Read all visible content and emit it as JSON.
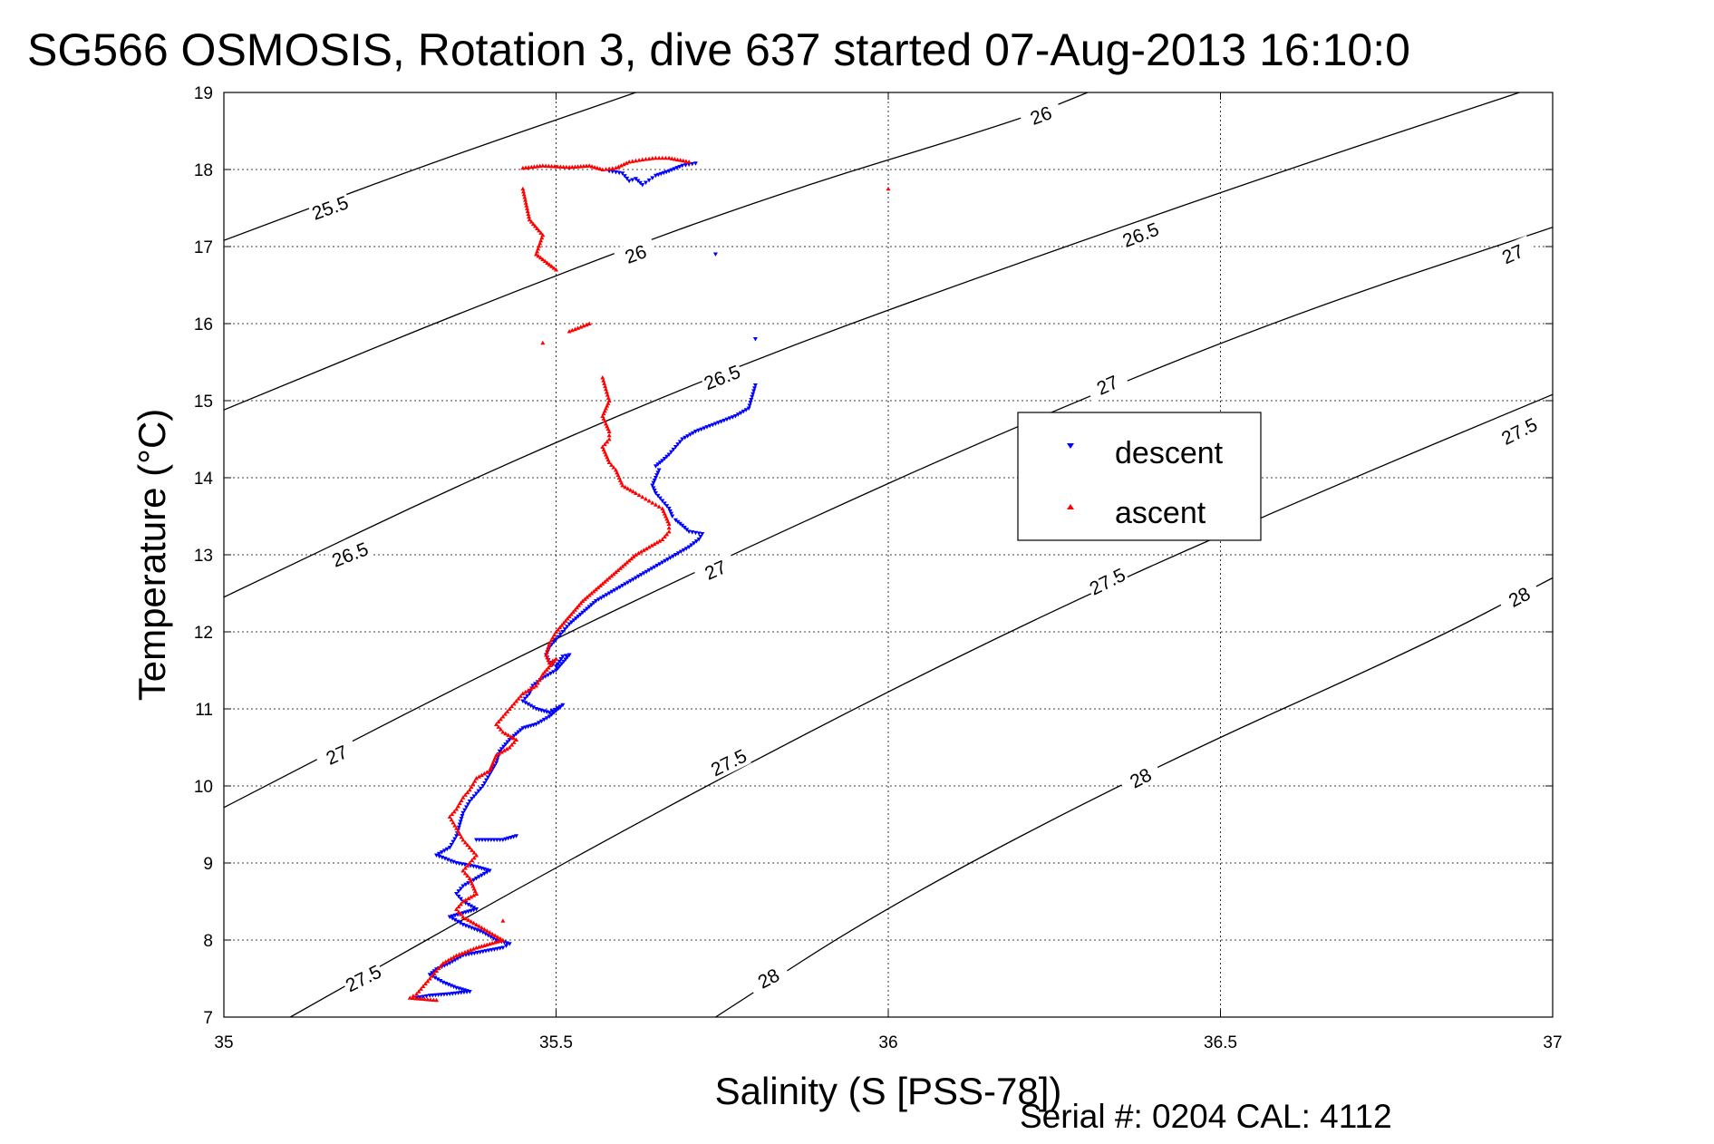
{
  "chart_data": {
    "type": "scatter",
    "title": "SG566 OSMOSIS, Rotation 3, dive 637 started 07-Aug-2013 16:10:0",
    "xlabel": "Salinity (S [PSS-78])",
    "ylabel": "Temperature (°C)",
    "xlim": [
      35,
      37
    ],
    "ylim": [
      7,
      19
    ],
    "xticks": [
      "35",
      "35.5",
      "36",
      "36.5",
      "37"
    ],
    "yticks": [
      "7",
      "8",
      "9",
      "10",
      "11",
      "12",
      "13",
      "14",
      "15",
      "16",
      "17",
      "18",
      "19"
    ],
    "grid": true,
    "legend_position": "right-center",
    "footer": "Serial #: 0204  CAL: 4112",
    "contours": [
      {
        "label": "25.5",
        "label_positions": [
          [
            35.16,
            17.5
          ]
        ],
        "points": [
          [
            35.0,
            17.08
          ],
          [
            35.3,
            18.05
          ],
          [
            35.62,
            19.0
          ]
        ]
      },
      {
        "label": "26",
        "label_positions": [
          [
            35.62,
            16.9
          ],
          [
            36.23,
            18.7
          ]
        ],
        "points": [
          [
            35.0,
            14.88
          ],
          [
            35.4,
            16.3
          ],
          [
            35.8,
            17.6
          ],
          [
            36.2,
            18.65
          ],
          [
            36.3,
            19.0
          ]
        ]
      },
      {
        "label": "26.5",
        "label_positions": [
          [
            35.19,
            13.0
          ],
          [
            35.75,
            15.3
          ],
          [
            36.38,
            17.15
          ]
        ],
        "points": [
          [
            35.0,
            12.45
          ],
          [
            35.4,
            14.1
          ],
          [
            35.8,
            15.55
          ],
          [
            36.2,
            16.8
          ],
          [
            36.6,
            18.0
          ],
          [
            36.95,
            19.0
          ]
        ]
      },
      {
        "label": "27",
        "label_positions": [
          [
            35.17,
            10.4
          ],
          [
            35.74,
            12.8
          ],
          [
            36.33,
            15.2
          ],
          [
            36.94,
            16.9
          ]
        ],
        "points": [
          [
            35.0,
            9.72
          ],
          [
            35.4,
            11.5
          ],
          [
            35.8,
            13.15
          ],
          [
            36.2,
            14.7
          ],
          [
            36.6,
            16.1
          ],
          [
            37.0,
            17.25
          ]
        ]
      },
      {
        "label": "27.5",
        "label_positions": [
          [
            35.21,
            7.5
          ],
          [
            35.76,
            10.3
          ],
          [
            36.33,
            12.65
          ],
          [
            36.95,
            14.6
          ]
        ],
        "points": [
          [
            35.1,
            7.0
          ],
          [
            35.5,
            8.95
          ],
          [
            35.9,
            10.8
          ],
          [
            36.3,
            12.5
          ],
          [
            36.7,
            14.0
          ],
          [
            37.0,
            15.08
          ]
        ]
      },
      {
        "label": "28",
        "label_positions": [
          [
            35.82,
            7.5
          ],
          [
            36.38,
            10.1
          ],
          [
            36.95,
            12.45
          ]
        ],
        "points": [
          [
            35.74,
            7.0
          ],
          [
            36.0,
            8.45
          ],
          [
            36.4,
            10.25
          ],
          [
            36.8,
            11.8
          ],
          [
            37.0,
            12.7
          ]
        ]
      }
    ],
    "series": [
      {
        "name": "descent",
        "color": "#0000ff",
        "marker": "triangle-down",
        "points": [
          [
            35.58,
            17.98
          ],
          [
            35.6,
            17.95
          ],
          [
            35.61,
            17.85
          ],
          [
            35.62,
            17.88
          ],
          [
            35.63,
            17.8
          ],
          [
            35.64,
            17.86
          ],
          [
            35.65,
            17.92
          ],
          [
            35.67,
            17.98
          ],
          [
            35.69,
            18.05
          ],
          [
            35.71,
            18.08
          ],
          [
            35.74,
            16.9
          ],
          [
            35.8,
            15.8
          ],
          [
            35.8,
            15.2
          ],
          [
            35.79,
            14.9
          ],
          [
            35.77,
            14.8
          ],
          [
            35.74,
            14.7
          ],
          [
            35.71,
            14.6
          ],
          [
            35.69,
            14.5
          ],
          [
            35.68,
            14.4
          ],
          [
            35.67,
            14.3
          ],
          [
            35.66,
            14.22
          ],
          [
            35.65,
            14.15
          ],
          [
            35.655,
            14.1
          ],
          [
            35.65,
            14.0
          ],
          [
            35.645,
            13.9
          ],
          [
            35.65,
            13.8
          ],
          [
            35.66,
            13.7
          ],
          [
            35.67,
            13.6
          ],
          [
            35.675,
            13.5
          ],
          [
            35.68,
            13.45
          ],
          [
            35.69,
            13.38
          ],
          [
            35.7,
            13.3
          ],
          [
            35.72,
            13.27
          ],
          [
            35.715,
            13.2
          ],
          [
            35.7,
            13.1
          ],
          [
            35.68,
            13.0
          ],
          [
            35.66,
            12.9
          ],
          [
            35.64,
            12.8
          ],
          [
            35.62,
            12.7
          ],
          [
            35.6,
            12.6
          ],
          [
            35.58,
            12.5
          ],
          [
            35.56,
            12.4
          ],
          [
            35.54,
            12.25
          ],
          [
            35.52,
            12.1
          ],
          [
            35.51,
            12.0
          ],
          [
            35.5,
            11.9
          ],
          [
            35.49,
            11.8
          ],
          [
            35.485,
            11.7
          ],
          [
            35.49,
            11.6
          ],
          [
            35.5,
            11.55
          ],
          [
            35.51,
            11.68
          ],
          [
            35.52,
            11.7
          ],
          [
            35.5,
            11.5
          ],
          [
            35.48,
            11.4
          ],
          [
            35.465,
            11.3
          ],
          [
            35.46,
            11.2
          ],
          [
            35.45,
            11.1
          ],
          [
            35.47,
            11.0
          ],
          [
            35.49,
            10.95
          ],
          [
            35.51,
            11.05
          ],
          [
            35.49,
            10.9
          ],
          [
            35.47,
            10.8
          ],
          [
            35.45,
            10.75
          ],
          [
            35.43,
            10.6
          ],
          [
            35.415,
            10.45
          ],
          [
            35.41,
            10.3
          ],
          [
            35.4,
            10.15
          ],
          [
            35.39,
            10.0
          ],
          [
            35.38,
            9.9
          ],
          [
            35.37,
            9.8
          ],
          [
            35.36,
            9.65
          ],
          [
            35.355,
            9.5
          ],
          [
            35.35,
            9.35
          ],
          [
            35.34,
            9.2
          ],
          [
            35.32,
            9.1
          ],
          [
            35.35,
            9.0
          ],
          [
            35.38,
            8.95
          ],
          [
            35.4,
            8.9
          ],
          [
            35.38,
            8.8
          ],
          [
            35.36,
            8.7
          ],
          [
            35.35,
            8.6
          ],
          [
            35.36,
            8.5
          ],
          [
            35.38,
            8.4
          ],
          [
            35.36,
            8.35
          ],
          [
            35.34,
            8.3
          ],
          [
            35.36,
            8.2
          ],
          [
            35.39,
            8.1
          ],
          [
            35.41,
            8.0
          ],
          [
            35.43,
            7.95
          ],
          [
            35.42,
            7.9
          ],
          [
            35.39,
            7.85
          ],
          [
            35.36,
            7.8
          ],
          [
            35.34,
            7.7
          ],
          [
            35.32,
            7.62
          ],
          [
            35.31,
            7.55
          ],
          [
            35.33,
            7.45
          ],
          [
            35.35,
            7.38
          ],
          [
            35.37,
            7.33
          ],
          [
            35.34,
            7.3
          ],
          [
            35.31,
            7.28
          ],
          [
            35.29,
            7.25
          ],
          [
            35.38,
            9.3
          ],
          [
            35.42,
            9.3
          ],
          [
            35.44,
            9.35
          ]
        ]
      },
      {
        "name": "ascent",
        "color": "#ff0000",
        "marker": "triangle-up",
        "points": [
          [
            35.45,
            18.02
          ],
          [
            35.48,
            18.05
          ],
          [
            35.52,
            18.03
          ],
          [
            35.55,
            18.05
          ],
          [
            35.57,
            18.0
          ],
          [
            35.59,
            18.02
          ],
          [
            35.61,
            18.1
          ],
          [
            35.63,
            18.13
          ],
          [
            35.65,
            18.15
          ],
          [
            35.67,
            18.15
          ],
          [
            35.7,
            18.1
          ],
          [
            36.0,
            17.75
          ],
          [
            35.45,
            17.75
          ],
          [
            35.46,
            17.35
          ],
          [
            35.48,
            17.15
          ],
          [
            35.47,
            16.9
          ],
          [
            35.5,
            16.7
          ],
          [
            35.52,
            15.9
          ],
          [
            35.55,
            16.0
          ],
          [
            35.48,
            15.75
          ],
          [
            35.57,
            15.3
          ],
          [
            35.58,
            15.0
          ],
          [
            35.57,
            14.8
          ],
          [
            35.58,
            14.6
          ],
          [
            35.58,
            14.5
          ],
          [
            35.57,
            14.4
          ],
          [
            35.575,
            14.3
          ],
          [
            35.58,
            14.2
          ],
          [
            35.59,
            14.1
          ],
          [
            35.595,
            14.0
          ],
          [
            35.6,
            13.9
          ],
          [
            35.62,
            13.8
          ],
          [
            35.63,
            13.75
          ],
          [
            35.64,
            13.7
          ],
          [
            35.65,
            13.65
          ],
          [
            35.66,
            13.6
          ],
          [
            35.665,
            13.5
          ],
          [
            35.67,
            13.4
          ],
          [
            35.67,
            13.3
          ],
          [
            35.66,
            13.2
          ],
          [
            35.64,
            13.1
          ],
          [
            35.62,
            13.0
          ],
          [
            35.6,
            12.85
          ],
          [
            35.58,
            12.7
          ],
          [
            35.56,
            12.55
          ],
          [
            35.54,
            12.4
          ],
          [
            35.52,
            12.2
          ],
          [
            35.5,
            12.0
          ],
          [
            35.49,
            11.85
          ],
          [
            35.485,
            11.7
          ],
          [
            35.49,
            11.6
          ],
          [
            35.5,
            11.65
          ],
          [
            35.48,
            11.45
          ],
          [
            35.47,
            11.3
          ],
          [
            35.45,
            11.2
          ],
          [
            35.44,
            11.1
          ],
          [
            35.43,
            11.0
          ],
          [
            35.42,
            10.9
          ],
          [
            35.41,
            10.8
          ],
          [
            35.42,
            10.7
          ],
          [
            35.44,
            10.6
          ],
          [
            35.43,
            10.5
          ],
          [
            35.41,
            10.4
          ],
          [
            35.4,
            10.2
          ],
          [
            35.38,
            10.1
          ],
          [
            35.37,
            9.95
          ],
          [
            35.36,
            9.85
          ],
          [
            35.35,
            9.7
          ],
          [
            35.34,
            9.6
          ],
          [
            35.35,
            9.45
          ],
          [
            35.36,
            9.3
          ],
          [
            35.37,
            9.2
          ],
          [
            35.38,
            9.1
          ],
          [
            35.37,
            9.0
          ],
          [
            35.36,
            8.9
          ],
          [
            35.37,
            8.8
          ],
          [
            35.38,
            8.6
          ],
          [
            35.36,
            8.5
          ],
          [
            35.35,
            8.4
          ],
          [
            35.36,
            8.3
          ],
          [
            35.38,
            8.2
          ],
          [
            35.4,
            8.1
          ],
          [
            35.42,
            8.0
          ],
          [
            35.4,
            7.95
          ],
          [
            35.38,
            7.9
          ],
          [
            35.35,
            7.8
          ],
          [
            35.33,
            7.7
          ],
          [
            35.32,
            7.6
          ],
          [
            35.31,
            7.5
          ],
          [
            35.3,
            7.4
          ],
          [
            35.29,
            7.3
          ],
          [
            35.28,
            7.25
          ],
          [
            35.32,
            7.22
          ],
          [
            35.42,
            8.25
          ]
        ]
      }
    ]
  }
}
